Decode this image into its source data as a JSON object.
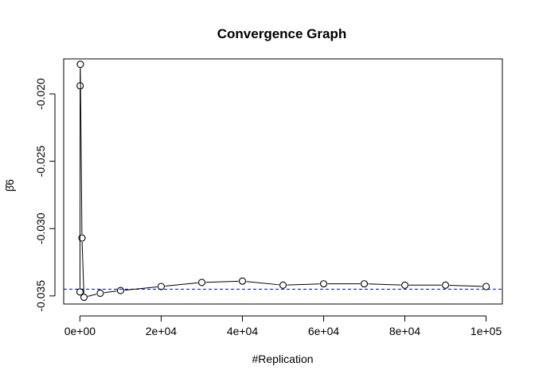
{
  "chart_data": {
    "type": "line",
    "title": "Convergence Graph",
    "xlabel": "#Replication",
    "ylabel": "β̂6",
    "xlim": [
      -4000,
      104000
    ],
    "ylim": [
      -0.0356,
      -0.0174
    ],
    "xticks": [
      0,
      20000,
      40000,
      60000,
      80000,
      100000
    ],
    "xtick_labels": [
      "0e+00",
      "2e+04",
      "4e+04",
      "6e+04",
      "8e+04",
      "1e+05"
    ],
    "yticks": [
      -0.035,
      -0.03,
      -0.025,
      -0.02
    ],
    "ytick_labels": [
      "-0.035",
      "-0.030",
      "-0.025",
      "-0.020"
    ],
    "grid": false,
    "series": [
      {
        "marker": "open-circle",
        "line": "solid",
        "color": "#000000",
        "x": [
          10,
          50,
          100,
          500,
          1000,
          5000,
          10000,
          20000,
          30000,
          40000,
          50000,
          60000,
          70000,
          80000,
          90000,
          100000
        ],
        "y": [
          -0.0347,
          -0.0194,
          -0.0178,
          -0.0307,
          -0.0351,
          -0.0348,
          -0.0346,
          -0.0343,
          -0.034,
          -0.0339,
          -0.0342,
          -0.0341,
          -0.0341,
          -0.0342,
          -0.0342,
          -0.0343
        ]
      }
    ],
    "reference_line": {
      "y": -0.0345,
      "style": "dashed",
      "color": "#0000cc"
    }
  }
}
